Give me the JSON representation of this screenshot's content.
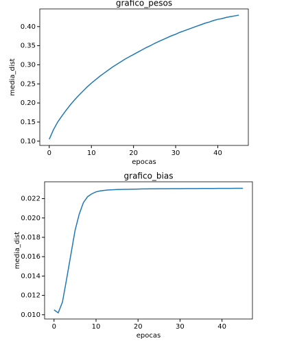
{
  "chart_data": [
    {
      "type": "line",
      "title": "grafico_pesos",
      "x_label": "epocas",
      "y_label": "media_dist",
      "x": [
        0,
        1,
        2,
        3,
        4,
        5,
        6,
        7,
        8,
        9,
        10,
        11,
        12,
        13,
        14,
        15,
        16,
        17,
        18,
        19,
        20,
        21,
        22,
        23,
        24,
        25,
        26,
        27,
        28,
        29,
        30,
        31,
        32,
        33,
        34,
        35,
        36,
        37,
        38,
        39,
        40,
        41,
        42,
        43,
        44,
        45
      ],
      "series": [
        {
          "color": "#1f77b4",
          "values": [
            0.105,
            0.13,
            0.15,
            0.166,
            0.181,
            0.195,
            0.208,
            0.22,
            0.231,
            0.242,
            0.252,
            0.261,
            0.27,
            0.278,
            0.286,
            0.294,
            0.301,
            0.308,
            0.315,
            0.321,
            0.327,
            0.333,
            0.339,
            0.345,
            0.35,
            0.356,
            0.361,
            0.366,
            0.371,
            0.376,
            0.38,
            0.385,
            0.389,
            0.393,
            0.397,
            0.401,
            0.405,
            0.409,
            0.412,
            0.416,
            0.419,
            0.421,
            0.424,
            0.426,
            0.428,
            0.43
          ]
        }
      ],
      "xlim": [
        -2.25,
        47.25
      ],
      "xticks": [
        0,
        10,
        20,
        30,
        40
      ],
      "ylim": [
        0.0888,
        0.4463
      ],
      "yticks": [
        {
          "value": 0.1,
          "label": "0.10"
        },
        0.15,
        {
          "value": 0.2,
          "label": "0.20"
        },
        0.25,
        {
          "value": 0.3,
          "label": "0.30"
        },
        0.35,
        {
          "value": 0.4,
          "label": "0.40"
        }
      ]
    },
    {
      "type": "line",
      "title": "grafico_bias",
      "x_label": "epocas",
      "y_label": "media_dist",
      "x": [
        0,
        1,
        2,
        3,
        4,
        5,
        6,
        7,
        8,
        9,
        10,
        11,
        12,
        13,
        14,
        15,
        16,
        17,
        18,
        19,
        20,
        21,
        22,
        23,
        24,
        25,
        26,
        27,
        28,
        29,
        30,
        31,
        32,
        33,
        34,
        35,
        36,
        37,
        38,
        39,
        40,
        41,
        42,
        43,
        44,
        45
      ],
      "series": [
        {
          "color": "#1f77b4",
          "values": [
            0.0105,
            0.0102,
            0.0113,
            0.0137,
            0.0162,
            0.0187,
            0.0204,
            0.0216,
            0.0222,
            0.0225,
            0.0227,
            0.0228,
            0.02285,
            0.0229,
            0.02292,
            0.02294,
            0.02295,
            0.02296,
            0.02297,
            0.02298,
            0.02299,
            0.023,
            0.023,
            0.02301,
            0.02301,
            0.02302,
            0.02302,
            0.02302,
            0.02303,
            0.02303,
            0.02303,
            0.02304,
            0.02304,
            0.02304,
            0.02304,
            0.02305,
            0.02305,
            0.02305,
            0.02305,
            0.02306,
            0.02306,
            0.02306,
            0.02306,
            0.02307,
            0.02307,
            0.02307
          ]
        }
      ],
      "xlim": [
        -2.25,
        47.25
      ],
      "xticks": [
        0,
        10,
        20,
        30,
        40
      ],
      "ylim": [
        0.00956,
        0.02374
      ],
      "yticks": [
        {
          "value": 0.01,
          "label": "0.010"
        },
        {
          "value": 0.012,
          "label": "0.012"
        },
        {
          "value": 0.014,
          "label": "0.014"
        },
        {
          "value": 0.016,
          "label": "0.016"
        },
        {
          "value": 0.018,
          "label": "0.018"
        },
        {
          "value": 0.02,
          "label": "0.020"
        },
        {
          "value": 0.022,
          "label": "0.022"
        }
      ]
    }
  ]
}
